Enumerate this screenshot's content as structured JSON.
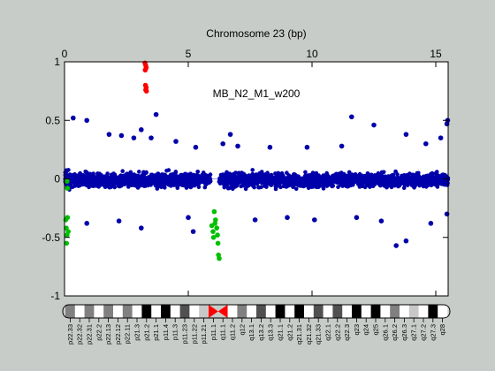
{
  "chart_data": {
    "type": "scatter",
    "title": "Chromosome 23 (bp)",
    "annotation": "MB_N2_M1_w200",
    "x_ticks": [
      0,
      5,
      10,
      15
    ],
    "y_ticks": [
      -1,
      -0.5,
      0,
      0.5,
      1
    ],
    "xlim": [
      0,
      15.5
    ],
    "ylim": [
      -1,
      1
    ],
    "grid": false,
    "colors": {
      "background": "#c8ccc8",
      "plot_area": "#ffffff",
      "normal": "#0000aa",
      "gain": "#ff0000",
      "loss": "#00c000",
      "baseline": "#a0a0ff",
      "centromere": "#ff0000"
    },
    "series": [
      {
        "color_key": "gain",
        "points": [
          [
            3.25,
            0.99
          ],
          [
            3.28,
            0.97
          ],
          [
            3.3,
            0.95
          ],
          [
            3.26,
            0.93
          ],
          [
            3.27,
            0.8
          ],
          [
            3.3,
            0.78
          ],
          [
            3.28,
            0.76
          ],
          [
            3.31,
            0.75
          ]
        ]
      },
      {
        "color_key": "loss",
        "points": [
          [
            0.05,
            -0.35
          ],
          [
            0.07,
            -0.42
          ],
          [
            0.1,
            -0.48
          ],
          [
            0.08,
            -0.55
          ],
          [
            0.12,
            -0.33
          ],
          [
            0.15,
            -0.45
          ],
          [
            0.1,
            -0.02
          ],
          [
            0.12,
            -0.08
          ],
          [
            5.95,
            -0.4
          ],
          [
            6.0,
            -0.45
          ],
          [
            6.02,
            -0.5
          ],
          [
            6.08,
            -0.38
          ],
          [
            6.15,
            -0.42
          ],
          [
            6.2,
            -0.55
          ],
          [
            6.22,
            -0.65
          ],
          [
            6.25,
            -0.68
          ],
          [
            6.18,
            -0.48
          ],
          [
            6.05,
            -0.28
          ],
          [
            6.1,
            -0.35
          ]
        ]
      },
      {
        "color_key": "normal",
        "points": [
          [
            0.35,
            0.52
          ],
          [
            0.9,
            0.5
          ],
          [
            1.8,
            0.38
          ],
          [
            2.3,
            0.37
          ],
          [
            2.8,
            0.35
          ],
          [
            3.1,
            0.42
          ],
          [
            3.5,
            0.35
          ],
          [
            3.7,
            0.55
          ],
          [
            4.5,
            0.32
          ],
          [
            5.3,
            0.27
          ],
          [
            6.4,
            0.3
          ],
          [
            6.7,
            0.38
          ],
          [
            7.0,
            0.28
          ],
          [
            8.3,
            0.27
          ],
          [
            9.8,
            0.27
          ],
          [
            11.2,
            0.28
          ],
          [
            11.6,
            0.53
          ],
          [
            12.5,
            0.46
          ],
          [
            13.8,
            0.38
          ],
          [
            14.6,
            0.3
          ],
          [
            15.2,
            0.35
          ],
          [
            15.45,
            0.47
          ],
          [
            15.48,
            0.5
          ],
          [
            0.9,
            -0.38
          ],
          [
            2.2,
            -0.36
          ],
          [
            3.1,
            -0.42
          ],
          [
            5.0,
            -0.33
          ],
          [
            5.2,
            -0.45
          ],
          [
            7.7,
            -0.35
          ],
          [
            9.0,
            -0.33
          ],
          [
            10.1,
            -0.35
          ],
          [
            11.8,
            -0.33
          ],
          [
            12.8,
            -0.36
          ],
          [
            13.4,
            -0.57
          ],
          [
            13.8,
            -0.53
          ],
          [
            14.8,
            -0.38
          ],
          [
            15.45,
            -0.3
          ]
        ]
      }
    ],
    "ideogram": {
      "bands": [
        "p22.33",
        "p22.32",
        "p22.31",
        "p22.2",
        "p22.13",
        "p22.12",
        "p22.11",
        "p21.3",
        "p21.2",
        "p21.1",
        "p11.4",
        "p11.3",
        "p11.23",
        "p11.22",
        "p11.21",
        "p11.1",
        "q11.1",
        "q11.2",
        "q12",
        "q13.1",
        "q13.2",
        "q13.3",
        "q21.1",
        "q21.2",
        "q21.31",
        "q21.32",
        "q21.33",
        "q22.1",
        "q22.2",
        "q22.3",
        "q23",
        "q24",
        "q25",
        "q26.1",
        "q26.2",
        "q26.3",
        "q27.1",
        "q27.2",
        "q27.3",
        "q28"
      ],
      "stains": [
        "gpos50",
        "gneg",
        "gpos50",
        "gneg",
        "gpos50",
        "gneg",
        "gpos50",
        "gneg",
        "gpos100",
        "gneg",
        "gpos100",
        "gneg",
        "gpos75",
        "gneg",
        "gpos25",
        "acen",
        "acen",
        "gneg",
        "gpos50",
        "gneg",
        "gpos75",
        "gneg",
        "gpos100",
        "gneg",
        "gpos100",
        "gneg",
        "gpos75",
        "gneg",
        "gpos75",
        "gneg",
        "gpos100",
        "gneg",
        "gpos100",
        "gneg",
        "gpos50",
        "gneg",
        "gpos25",
        "gneg",
        "gpos100",
        "gneg"
      ]
    }
  }
}
